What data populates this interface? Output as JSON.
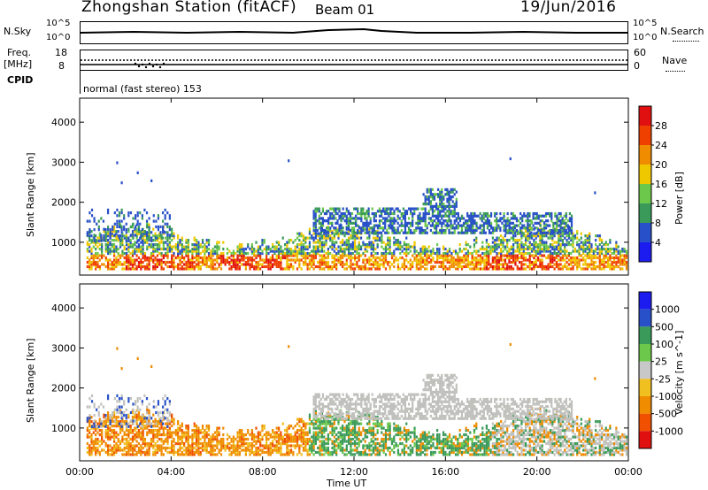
{
  "header": {
    "station": "Zhongshan Station (fitACF)",
    "beam": "Beam 01",
    "date": "19/Jun/2016"
  },
  "top_panels": {
    "nsky_label": "N.Sky",
    "nsky_ticks": [
      "10^5",
      "10^0"
    ],
    "nsearch_label": "N.Search",
    "nsearch_ticks": [
      "10^5",
      "10^0"
    ],
    "freq_label": "Freq.",
    "freq_unit": "[MHz]",
    "freq_ticks": [
      "18",
      "8"
    ],
    "nave_label": "Nave",
    "nave_ticks": [
      "60",
      "0"
    ],
    "cpid_label": "CPID",
    "cpid_value": "normal (fast stereo) 153"
  },
  "colors": {
    "power": [
      "#1c1cf0",
      "#2850c8",
      "#3a9a5a",
      "#6cc84a",
      "#f0c800",
      "#f08c00",
      "#f04000",
      "#e01010"
    ],
    "velocity": [
      "#e01010",
      "#f05000",
      "#f08c00",
      "#f0c020",
      "#c8c8c8",
      "#6cc84a",
      "#3a9a5a",
      "#2850c8",
      "#1c1cf0"
    ],
    "ground": "#c0c0bc"
  },
  "chart_data": [
    {
      "type": "heatmap",
      "title": "Power",
      "ylabel": "Slant Range [km]",
      "yticks": [
        "4000",
        "3000",
        "2000",
        "1000"
      ],
      "ylim": [
        180,
        4600
      ],
      "xlim": [
        0,
        24
      ],
      "colorbar": {
        "label": "Power [dB]",
        "ticks": [
          "28",
          "24",
          "20",
          "16",
          "12",
          "8",
          "4"
        ],
        "range": [
          0,
          32
        ]
      },
      "regions": [
        {
          "label": "E/lower F echoes",
          "t0": 0.3,
          "t1": 23.9,
          "r0": 300,
          "r1": 1000,
          "level": "high"
        },
        {
          "label": "F-region band",
          "t0": 10.2,
          "t1": 21.5,
          "r0": 1200,
          "r1": 1900,
          "level": "low"
        }
      ]
    },
    {
      "type": "heatmap",
      "title": "Velocity",
      "ylabel": "Slant Range [km]",
      "yticks": [
        "4000",
        "3000",
        "2000",
        "1000"
      ],
      "ylim": [
        180,
        4600
      ],
      "xlim": [
        0,
        24
      ],
      "colorbar": {
        "label": "Velocity [m s^-1]",
        "ticks": [
          "1000",
          "500",
          "100",
          "25",
          "-25",
          "-100",
          "-500",
          "-1000"
        ]
      },
      "xticks": [
        "00:00",
        "04:00",
        "08:00",
        "12:00",
        "16:00",
        "20:00",
        "00:00"
      ],
      "xlabel": "Time UT"
    }
  ]
}
